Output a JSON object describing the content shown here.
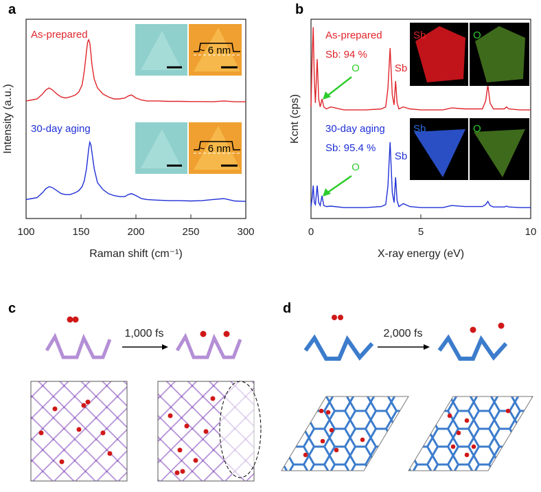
{
  "panel_labels": [
    "a",
    "b",
    "c",
    "d"
  ],
  "chart_data": [
    {
      "type": "line",
      "xlabel": "Raman shift (cm⁻¹)",
      "ylabel": "Intensity (a.u.)",
      "xlim": [
        100,
        300
      ],
      "xticks": [
        100,
        150,
        200,
        250,
        300
      ],
      "ylim": [
        0,
        10
      ],
      "x": [
        100,
        105,
        110,
        115,
        118,
        121,
        124,
        128,
        132,
        136,
        140,
        145,
        148,
        151,
        153,
        155,
        156,
        157,
        158,
        159,
        160,
        162,
        165,
        170,
        175,
        180,
        185,
        190,
        193,
        196,
        200,
        205,
        210,
        220,
        230,
        240,
        250,
        260,
        270,
        280,
        290,
        300
      ],
      "series": [
        {
          "name": "As-prepared",
          "color": "#e0242a",
          "values": [
            5.9,
            5.95,
            6.0,
            6.25,
            6.45,
            6.55,
            6.45,
            6.25,
            6.1,
            6.05,
            6.1,
            6.2,
            6.35,
            6.7,
            7.4,
            8.4,
            8.85,
            8.97,
            8.8,
            8.3,
            7.7,
            7.0,
            6.55,
            6.25,
            6.1,
            6.0,
            6.0,
            6.05,
            6.15,
            6.2,
            6.05,
            5.95,
            5.9,
            5.9,
            5.88,
            5.88,
            5.87,
            5.87,
            5.86,
            5.9,
            5.86,
            5.86
          ]
        },
        {
          "name": "30-day aging",
          "color": "#1f2fd6",
          "values": [
            0.95,
            1.0,
            1.05,
            1.3,
            1.5,
            1.6,
            1.55,
            1.4,
            1.25,
            1.2,
            1.2,
            1.3,
            1.4,
            1.6,
            1.9,
            2.5,
            3.0,
            3.5,
            3.83,
            3.7,
            3.3,
            2.5,
            1.8,
            1.45,
            1.25,
            1.15,
            1.1,
            1.1,
            1.2,
            1.25,
            1.15,
            1.0,
            0.95,
            0.92,
            0.9,
            0.9,
            0.88,
            0.9,
            0.95,
            1.0,
            0.88,
            0.86
          ]
        }
      ],
      "annotations": [
        "~ 6 nm",
        "~ 6 nm"
      ]
    },
    {
      "type": "line",
      "xlabel": "X-ray energy (eV)",
      "ylabel": "Kcnt (cps)",
      "xlim": [
        0,
        10
      ],
      "xticks": [
        0,
        5,
        10
      ],
      "ylim": [
        0,
        10
      ],
      "x": [
        0,
        0.05,
        0.1,
        0.15,
        0.2,
        0.28,
        0.35,
        0.42,
        0.5,
        0.58,
        0.7,
        0.9,
        1.5,
        2.5,
        3.2,
        3.4,
        3.5,
        3.6,
        3.7,
        3.78,
        3.85,
        3.92,
        4.0,
        4.2,
        4.5,
        5,
        6,
        6.4,
        7,
        7.8,
        7.95,
        8.05,
        8.15,
        8.3,
        8.8,
        8.9,
        9.0,
        9.5,
        10
      ],
      "series": [
        {
          "name": "As-prepared",
          "color": "#e0242a",
          "values": [
            5.6,
            8.0,
            9.6,
            7.0,
            5.8,
            8.0,
            6.0,
            5.6,
            6.0,
            5.6,
            5.5,
            5.6,
            5.45,
            5.45,
            5.5,
            5.6,
            6.5,
            8.55,
            6.2,
            5.7,
            6.9,
            5.8,
            5.5,
            5.6,
            5.5,
            5.45,
            5.45,
            5.55,
            5.5,
            5.5,
            5.9,
            6.7,
            5.8,
            5.5,
            5.5,
            5.6,
            5.5,
            5.45,
            5.45
          ]
        },
        {
          "name": "30-day aging",
          "color": "#1f2fd6",
          "values": [
            0.6,
            1.0,
            1.65,
            0.8,
            0.7,
            1.65,
            0.8,
            0.65,
            1.14,
            0.65,
            0.6,
            0.62,
            0.55,
            0.55,
            0.6,
            0.7,
            1.6,
            3.83,
            1.3,
            0.8,
            2.07,
            0.9,
            0.6,
            0.75,
            0.6,
            0.55,
            0.55,
            0.65,
            0.6,
            0.6,
            0.7,
            0.86,
            0.65,
            0.58,
            0.58,
            0.62,
            0.58,
            0.55,
            0.55
          ]
        }
      ],
      "annotations": [
        "Sb: 94 %",
        "O",
        "Sb",
        "Sb",
        "O",
        "Sb: 95.4 %",
        "O",
        "Sb",
        "Sb",
        "O"
      ]
    }
  ],
  "simulations": [
    {
      "time": "1,000 fs"
    },
    {
      "time": "2,000 fs"
    }
  ]
}
